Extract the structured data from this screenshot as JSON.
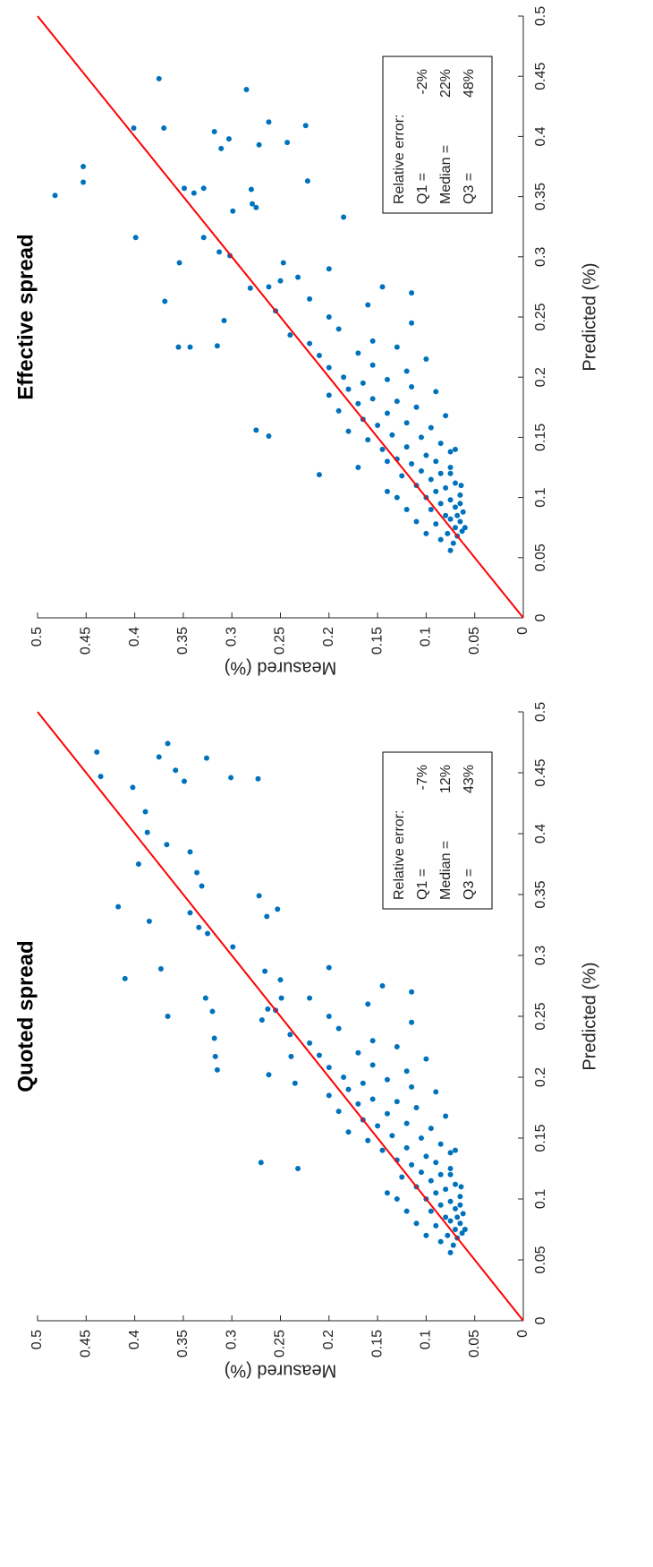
{
  "chart_data": [
    {
      "type": "scatter",
      "title": "Quoted spread",
      "x_label": "Predicted (%)",
      "y_label": "Measured (%)",
      "x": [
        0.467,
        0.447,
        0.438,
        0.474,
        0.463,
        0.418,
        0.401,
        0.375,
        0.391,
        0.452,
        0.443,
        0.385,
        0.368,
        0.357,
        0.335,
        0.34,
        0.328,
        0.323,
        0.318,
        0.307,
        0.281,
        0.289,
        0.25,
        0.265,
        0.254,
        0.232,
        0.217,
        0.206,
        0.445,
        0.349,
        0.332,
        0.338,
        0.462,
        0.446,
        0.287,
        0.256,
        0.247,
        0.265,
        0.202,
        0.217,
        0.195,
        0.056,
        0.062,
        0.065,
        0.068,
        0.07,
        0.072,
        0.075,
        0.078,
        0.08,
        0.082,
        0.085,
        0.088,
        0.09,
        0.092,
        0.095,
        0.098,
        0.1,
        0.102,
        0.105,
        0.105,
        0.108,
        0.11,
        0.112,
        0.115,
        0.118,
        0.12,
        0.122,
        0.125,
        0.125,
        0.128,
        0.13,
        0.13,
        0.132,
        0.135,
        0.138,
        0.14,
        0.142,
        0.145,
        0.148,
        0.15,
        0.152,
        0.155,
        0.158,
        0.16,
        0.162,
        0.165,
        0.168,
        0.17,
        0.172,
        0.175,
        0.178,
        0.18,
        0.182,
        0.185,
        0.188,
        0.19,
        0.192,
        0.195,
        0.198,
        0.2,
        0.205,
        0.208,
        0.21,
        0.215,
        0.218,
        0.22,
        0.225,
        0.228,
        0.23,
        0.235,
        0.24,
        0.245,
        0.25,
        0.255,
        0.26,
        0.265,
        0.27,
        0.275,
        0.28,
        0.29,
        0.07,
        0.075,
        0.08,
        0.085,
        0.09,
        0.095,
        0.1,
        0.11,
        0.12,
        0.14
      ],
      "values": [
        0.439,
        0.435,
        0.402,
        0.366,
        0.375,
        0.389,
        0.387,
        0.396,
        0.367,
        0.358,
        0.349,
        0.343,
        0.336,
        0.331,
        0.343,
        0.417,
        0.385,
        0.334,
        0.325,
        0.299,
        0.41,
        0.373,
        0.366,
        0.327,
        0.32,
        0.318,
        0.317,
        0.315,
        0.273,
        0.272,
        0.264,
        0.253,
        0.326,
        0.301,
        0.266,
        0.263,
        0.269,
        0.249,
        0.262,
        0.239,
        0.235,
        0.075,
        0.072,
        0.085,
        0.068,
        0.078,
        0.063,
        0.07,
        0.09,
        0.065,
        0.075,
        0.08,
        0.062,
        0.095,
        0.07,
        0.085,
        0.075,
        0.1,
        0.065,
        0.09,
        0.14,
        0.08,
        0.11,
        0.07,
        0.095,
        0.125,
        0.085,
        0.105,
        0.075,
        0.232,
        0.115,
        0.27,
        0.09,
        0.13,
        0.1,
        0.075,
        0.145,
        0.12,
        0.085,
        0.16,
        0.105,
        0.135,
        0.18,
        0.095,
        0.15,
        0.12,
        0.165,
        0.08,
        0.14,
        0.19,
        0.11,
        0.17,
        0.13,
        0.155,
        0.2,
        0.09,
        0.18,
        0.115,
        0.165,
        0.14,
        0.185,
        0.12,
        0.2,
        0.155,
        0.1,
        0.21,
        0.17,
        0.13,
        0.22,
        0.155,
        0.24,
        0.19,
        0.115,
        0.2,
        0.255,
        0.16,
        0.22,
        0.115,
        0.145,
        0.25,
        0.2,
        0.1,
        0.06,
        0.11,
        0.068,
        0.12,
        0.065,
        0.13,
        0.064,
        0.075,
        0.07
      ],
      "color": "#0072bd",
      "reference_line": {
        "from": [
          0,
          0
        ],
        "to": [
          0.5,
          0.5
        ],
        "color": "#ff0000"
      },
      "annotation": {
        "title": "Relative error:",
        "rows": [
          [
            "Q1 =",
            "-7%"
          ],
          [
            "Median =",
            "12%"
          ],
          [
            "Q3 =",
            "43%"
          ]
        ]
      },
      "xlim": [
        0,
        0.5
      ],
      "ylim": [
        0,
        0.5
      ],
      "xticks": [
        0,
        0.05,
        0.1,
        0.15,
        0.2,
        0.25,
        0.3,
        0.35,
        0.4,
        0.45,
        0.5
      ],
      "yticks": [
        0,
        0.05,
        0.1,
        0.15,
        0.2,
        0.25,
        0.3,
        0.35,
        0.4,
        0.45,
        0.5
      ]
    },
    {
      "type": "scatter",
      "title": "Effective spread",
      "x_label": "Predicted (%)",
      "y_label": "Measured (%)",
      "x": [
        0.351,
        0.375,
        0.362,
        0.448,
        0.407,
        0.316,
        0.407,
        0.404,
        0.398,
        0.39,
        0.439,
        0.412,
        0.409,
        0.393,
        0.395,
        0.357,
        0.353,
        0.357,
        0.338,
        0.356,
        0.363,
        0.316,
        0.304,
        0.301,
        0.344,
        0.341,
        0.333,
        0.295,
        0.263,
        0.225,
        0.225,
        0.226,
        0.247,
        0.274,
        0.275,
        0.295,
        0.283,
        0.119,
        0.151,
        0.156,
        0.056,
        0.062,
        0.065,
        0.068,
        0.07,
        0.072,
        0.075,
        0.078,
        0.08,
        0.082,
        0.085,
        0.088,
        0.09,
        0.092,
        0.095,
        0.098,
        0.1,
        0.102,
        0.105,
        0.105,
        0.108,
        0.11,
        0.112,
        0.115,
        0.118,
        0.12,
        0.122,
        0.125,
        0.125,
        0.128,
        0.13,
        0.13,
        0.132,
        0.135,
        0.138,
        0.14,
        0.142,
        0.145,
        0.148,
        0.15,
        0.152,
        0.155,
        0.158,
        0.16,
        0.162,
        0.165,
        0.168,
        0.17,
        0.172,
        0.175,
        0.178,
        0.18,
        0.182,
        0.185,
        0.188,
        0.19,
        0.192,
        0.195,
        0.198,
        0.2,
        0.205,
        0.208,
        0.21,
        0.215,
        0.218,
        0.22,
        0.225,
        0.228,
        0.23,
        0.235,
        0.24,
        0.245,
        0.25,
        0.255,
        0.26,
        0.265,
        0.27,
        0.275,
        0.28,
        0.29,
        0.07,
        0.075,
        0.08,
        0.085,
        0.09,
        0.095,
        0.1,
        0.11,
        0.12,
        0.14
      ],
      "values": [
        0.482,
        0.453,
        0.453,
        0.375,
        0.401,
        0.399,
        0.37,
        0.318,
        0.303,
        0.311,
        0.285,
        0.262,
        0.224,
        0.272,
        0.243,
        0.349,
        0.339,
        0.329,
        0.299,
        0.28,
        0.222,
        0.329,
        0.313,
        0.302,
        0.279,
        0.275,
        0.185,
        0.354,
        0.369,
        0.355,
        0.343,
        0.315,
        0.308,
        0.281,
        0.262,
        0.247,
        0.232,
        0.21,
        0.262,
        0.275,
        0.075,
        0.072,
        0.085,
        0.068,
        0.078,
        0.063,
        0.07,
        0.09,
        0.065,
        0.075,
        0.08,
        0.062,
        0.095,
        0.07,
        0.085,
        0.075,
        0.1,
        0.065,
        0.09,
        0.14,
        0.08,
        0.11,
        0.07,
        0.095,
        0.125,
        0.085,
        0.105,
        0.075,
        0.17,
        0.115,
        0.14,
        0.09,
        0.13,
        0.1,
        0.075,
        0.145,
        0.12,
        0.085,
        0.16,
        0.105,
        0.135,
        0.18,
        0.095,
        0.15,
        0.12,
        0.165,
        0.08,
        0.14,
        0.19,
        0.11,
        0.17,
        0.13,
        0.155,
        0.2,
        0.09,
        0.18,
        0.115,
        0.165,
        0.14,
        0.185,
        0.12,
        0.2,
        0.155,
        0.1,
        0.21,
        0.17,
        0.13,
        0.22,
        0.155,
        0.24,
        0.19,
        0.115,
        0.2,
        0.255,
        0.16,
        0.22,
        0.115,
        0.145,
        0.25,
        0.2,
        0.1,
        0.06,
        0.11,
        0.068,
        0.12,
        0.065,
        0.13,
        0.064,
        0.075,
        0.07
      ],
      "color": "#0072bd",
      "reference_line": {
        "from": [
          0,
          0
        ],
        "to": [
          0.5,
          0.5
        ],
        "color": "#ff0000"
      },
      "annotation": {
        "title": "Relative error:",
        "rows": [
          [
            "Q1 =",
            "-2%"
          ],
          [
            "Median =",
            "22%"
          ],
          [
            "Q3 =",
            "48%"
          ]
        ]
      },
      "xlim": [
        0,
        0.5
      ],
      "ylim": [
        0,
        0.5
      ],
      "xticks": [
        0,
        0.05,
        0.1,
        0.15,
        0.2,
        0.25,
        0.3,
        0.35,
        0.4,
        0.45,
        0.5
      ],
      "yticks": [
        0,
        0.05,
        0.1,
        0.15,
        0.2,
        0.25,
        0.3,
        0.35,
        0.4,
        0.45,
        0.5
      ]
    }
  ]
}
